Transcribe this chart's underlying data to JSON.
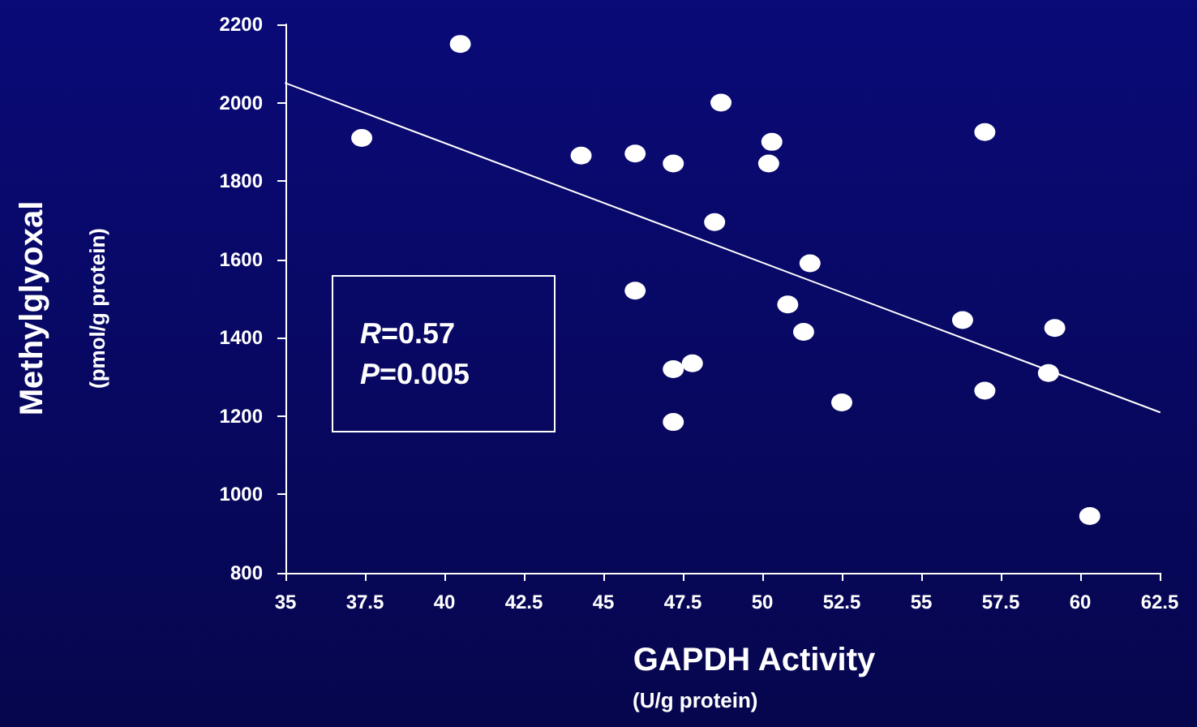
{
  "chart_data": {
    "type": "scatter",
    "xlabel": "GAPDH Activity\n(U/g protein)",
    "ylabel": "Methylglyoxal\n(pmol/g protein)",
    "annotations": [
      "R=0.57",
      "P=0.005"
    ],
    "xlim": [
      35,
      62.5
    ],
    "xticks": [
      35,
      37.5,
      40,
      42.5,
      45,
      47.5,
      50,
      52.5,
      55,
      57.5,
      60,
      62.5
    ],
    "ylim": [
      800,
      2200
    ],
    "yticks": [
      800,
      1000,
      1200,
      1400,
      1600,
      1800,
      2000,
      2200
    ],
    "grid": false,
    "marker": "circle",
    "series": [
      {
        "color": "#ffffff",
        "x": [
          37.4,
          40.5,
          44.3,
          46,
          47.2,
          48.7,
          48.5,
          50.3,
          50.2,
          57,
          46,
          51.5,
          50.8,
          51.3,
          47.2,
          47.8,
          47.2,
          52.5,
          56.3,
          57,
          59.2,
          59,
          60.3
        ],
        "values": [
          1910,
          2150,
          1865,
          1870,
          1845,
          2000,
          1695,
          1900,
          1845,
          1925,
          1520,
          1590,
          1485,
          1415,
          1320,
          1335,
          1185,
          1235,
          1445,
          1265,
          1425,
          1310,
          945
        ]
      },
      {
        "type": "line",
        "color": "#ffffff",
        "marker": "none",
        "x": [
          35,
          62.5
        ],
        "values": [
          2050,
          1210
        ]
      }
    ]
  }
}
